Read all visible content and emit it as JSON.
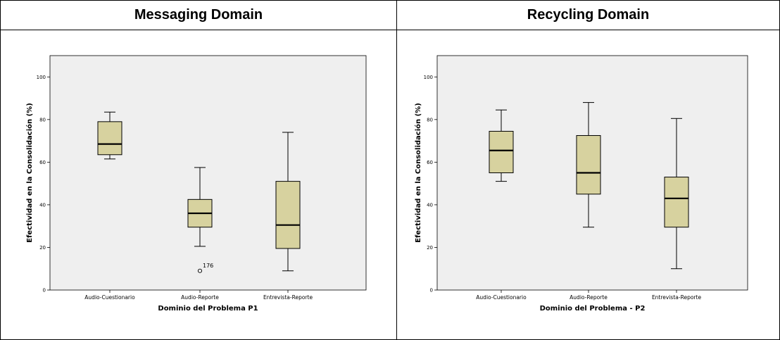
{
  "table": {
    "headers": [
      "Messaging Domain",
      "Recycling Domain"
    ]
  },
  "colors": {
    "plot_bg": "#efefef",
    "box_fill": "#d7d29f",
    "stroke": "#000000"
  },
  "chart_data": [
    {
      "type": "boxplot",
      "title": "Messaging Domain",
      "xlabel": "Dominio del Problema P1",
      "ylabel": "Efectividad en la Consolidación (%)",
      "ylim": [
        0,
        110
      ],
      "yticks": [
        0,
        20,
        40,
        60,
        80,
        100
      ],
      "grid": false,
      "categories": [
        "Audio-Cuestionario",
        "Audio-Reporte",
        "Entrevista-Reporte"
      ],
      "boxes": [
        {
          "category": "Audio-Cuestionario",
          "min": 61.5,
          "q1": 63.5,
          "median": 68.5,
          "q3": 79,
          "max": 83.5,
          "outliers": []
        },
        {
          "category": "Audio-Reporte",
          "min": 20.5,
          "q1": 29.5,
          "median": 36,
          "q3": 42.5,
          "max": 57.5,
          "outliers": [
            {
              "value": 9,
              "label": "176"
            }
          ]
        },
        {
          "category": "Entrevista-Reporte",
          "min": 9,
          "q1": 19.5,
          "median": 30.5,
          "q3": 51,
          "max": 74,
          "outliers": []
        }
      ]
    },
    {
      "type": "boxplot",
      "title": "Recycling Domain",
      "xlabel": "Dominio del Problema - P2",
      "ylabel": "Efectividad en la Consolidación (%)",
      "ylim": [
        0,
        110
      ],
      "yticks": [
        0,
        20,
        40,
        60,
        80,
        100
      ],
      "grid": false,
      "categories": [
        "Audio-Cuestionario",
        "Audio-Reporte",
        "Entrevista-Reporte"
      ],
      "boxes": [
        {
          "category": "Audio-Cuestionario",
          "min": 51,
          "q1": 55,
          "median": 65.5,
          "q3": 74.5,
          "max": 84.5,
          "outliers": []
        },
        {
          "category": "Audio-Reporte",
          "min": 29.5,
          "q1": 45,
          "median": 55,
          "q3": 72.5,
          "max": 88,
          "outliers": []
        },
        {
          "category": "Entrevista-Reporte",
          "min": 10,
          "q1": 29.5,
          "median": 43,
          "q3": 53,
          "max": 80.5,
          "outliers": []
        }
      ]
    }
  ]
}
